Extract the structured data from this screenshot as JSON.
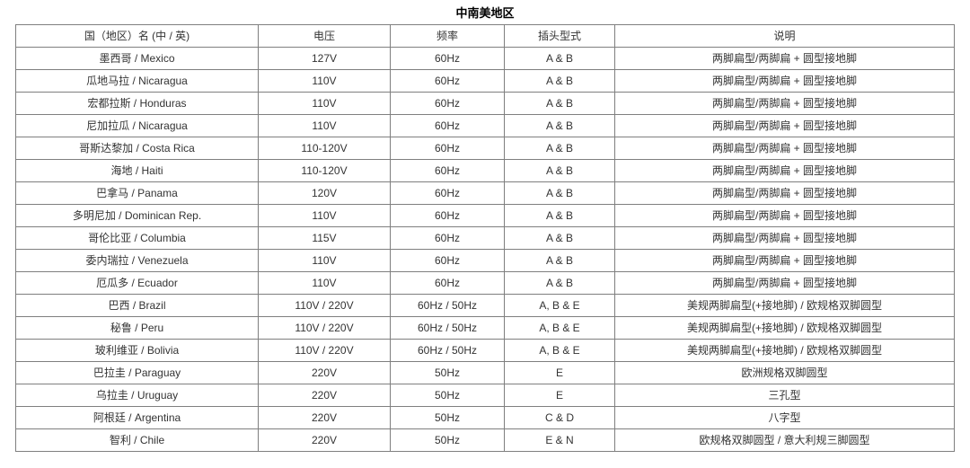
{
  "page": {
    "title": "中南美地区"
  },
  "table": {
    "headers": [
      "国（地区）名 (中 / 英)",
      "电压",
      "频率",
      "插头型式",
      "说明"
    ],
    "rows": [
      [
        "墨西哥 / Mexico",
        "127V",
        "60Hz",
        "A & B",
        "两脚扁型/两脚扁 + 圆型接地脚"
      ],
      [
        "瓜地马拉 / Nicaragua",
        "110V",
        "60Hz",
        "A & B",
        "两脚扁型/两脚扁 + 圆型接地脚"
      ],
      [
        "宏都拉斯 / Honduras",
        "110V",
        "60Hz",
        "A & B",
        "两脚扁型/两脚扁 + 圆型接地脚"
      ],
      [
        "尼加拉瓜 / Nicaragua",
        "110V",
        "60Hz",
        "A & B",
        "两脚扁型/两脚扁 + 圆型接地脚"
      ],
      [
        "哥斯达黎加 / Costa Rica",
        "110-120V",
        "60Hz",
        "A & B",
        "两脚扁型/两脚扁 + 圆型接地脚"
      ],
      [
        "海地 / Haiti",
        "110-120V",
        "60Hz",
        "A & B",
        "两脚扁型/两脚扁 + 圆型接地脚"
      ],
      [
        "巴拿马 / Panama",
        "120V",
        "60Hz",
        "A & B",
        "两脚扁型/两脚扁 + 圆型接地脚"
      ],
      [
        "多明尼加 / Dominican Rep.",
        "110V",
        "60Hz",
        "A & B",
        "两脚扁型/两脚扁 + 圆型接地脚"
      ],
      [
        "哥伦比亚 / Columbia",
        "115V",
        "60Hz",
        "A & B",
        "两脚扁型/两脚扁 + 圆型接地脚"
      ],
      [
        "委内瑞拉 / Venezuela",
        "110V",
        "60Hz",
        "A & B",
        "两脚扁型/两脚扁 + 圆型接地脚"
      ],
      [
        "厄瓜多 / Ecuador",
        "110V",
        "60Hz",
        "A & B",
        "两脚扁型/两脚扁 + 圆型接地脚"
      ],
      [
        "巴西 / Brazil",
        "110V / 220V",
        "60Hz / 50Hz",
        "A, B & E",
        "美规两脚扁型(+接地脚) / 欧规格双脚圆型"
      ],
      [
        "秘鲁 / Peru",
        "110V / 220V",
        "60Hz / 50Hz",
        "A, B & E",
        "美规两脚扁型(+接地脚) / 欧规格双脚圆型"
      ],
      [
        "玻利维亚 / Bolivia",
        "110V / 220V",
        "60Hz / 50Hz",
        "A, B & E",
        "美规两脚扁型(+接地脚) / 欧规格双脚圆型"
      ],
      [
        "巴拉圭 / Paraguay",
        "220V",
        "50Hz",
        "E",
        "欧洲规格双脚圆型"
      ],
      [
        "乌拉圭 / Uruguay",
        "220V",
        "50Hz",
        "E",
        "三孔型"
      ],
      [
        "阿根廷 / Argentina",
        "220V",
        "50Hz",
        "C & D",
        "八字型"
      ],
      [
        "智利 / Chile",
        "220V",
        "50Hz",
        "E & N",
        "欧规格双脚圆型 / 意大利规三脚圆型"
      ]
    ]
  },
  "colors": {
    "text": "#333333",
    "grid_line": "#7f7f7f",
    "outer_border": "#4d4d4d",
    "background": "#ffffff"
  }
}
